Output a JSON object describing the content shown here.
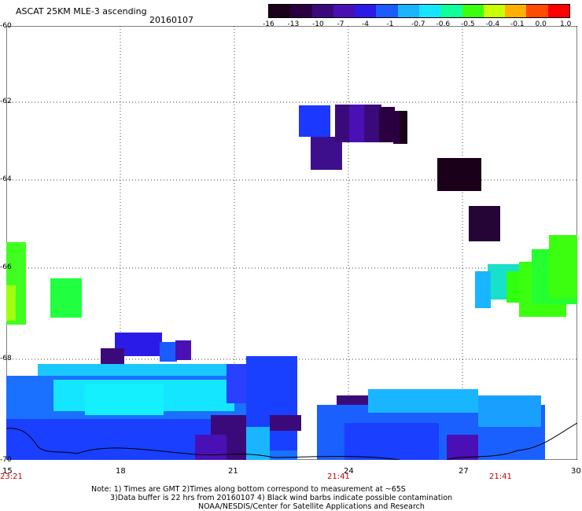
{
  "header": {
    "title": "ASCAT 25KM MLE-3 ascending",
    "date": "20160107"
  },
  "colorbar": {
    "labels": [
      "-16",
      "-13",
      "-10",
      "-7",
      "-4",
      "-1",
      "-0.7",
      "-0.6",
      "-0.5",
      "-0.4",
      "-0.1",
      "0.0",
      "1.0"
    ],
    "colors": [
      "#1a0018",
      "#2a0040",
      "#3b0a7a",
      "#4a10b5",
      "#2a1be8",
      "#1a5cff",
      "#19b6ff",
      "#14e6ff",
      "#10ff9a",
      "#3cff10",
      "#c8ff08",
      "#ffb000",
      "#ff4a00",
      "#ff0000"
    ]
  },
  "map": {
    "y_ticks": [
      "-60",
      "-62",
      "-64",
      "-66",
      "-68",
      "-70"
    ],
    "x_ticks": [
      "15",
      "18",
      "21",
      "24",
      "27",
      "30"
    ],
    "time_labels": [
      "23:21",
      "21:41",
      "21:41"
    ],
    "grid": true
  },
  "notes": {
    "line1": "Note: 1) Times are GMT 2)Times along bottom correspond to measurement at ~65S",
    "line2": "3)Data buffer is 22 hrs from 20160107 4) Black wind barbs indicate possible contamination",
    "line3": "NOAA/NESDIS/Center for Satellite Applications and Research"
  }
}
